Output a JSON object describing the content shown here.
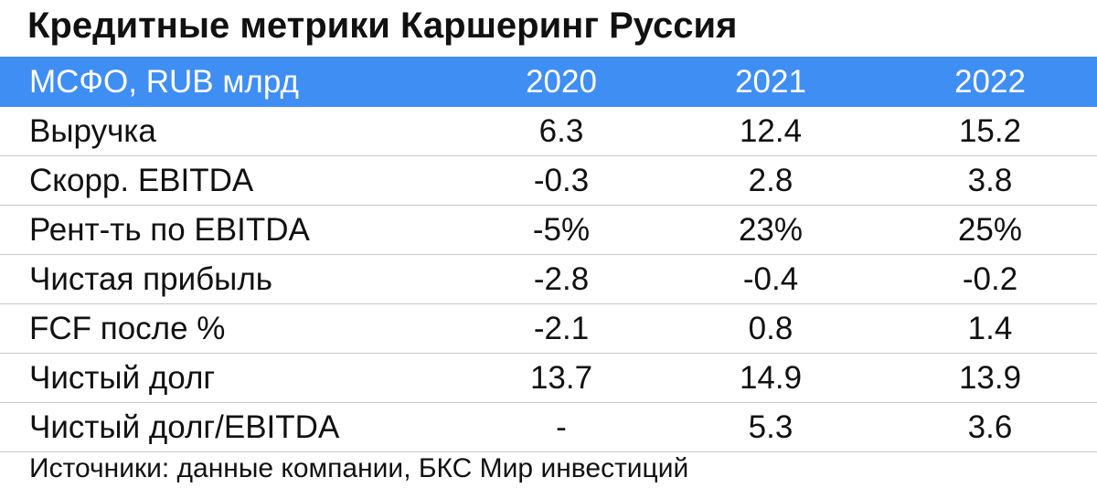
{
  "title": "Кредитные метрики Каршеринг Руссия",
  "table": {
    "header": [
      "МСФО, RUB млрд",
      "2020",
      "2021",
      "2022"
    ],
    "rows": [
      [
        "Выручка",
        "6.3",
        "12.4",
        "15.2"
      ],
      [
        "Скорр. EBITDA",
        "-0.3",
        "2.8",
        "3.8"
      ],
      [
        "Рент-ть по EBITDA",
        "-5%",
        "23%",
        "25%"
      ],
      [
        "Чистая прибыль",
        "-2.8",
        "-0.4",
        "-0.2"
      ],
      [
        "FCF после %",
        "-2.1",
        "0.8",
        "1.4"
      ],
      [
        "Чистый долг",
        "13.7",
        "14.9",
        "13.9"
      ],
      [
        "Чистый долг/EBITDA",
        "-",
        "5.3",
        "3.6"
      ]
    ]
  },
  "footer": "Источники: данные компании, БКС Мир инвестиций"
}
